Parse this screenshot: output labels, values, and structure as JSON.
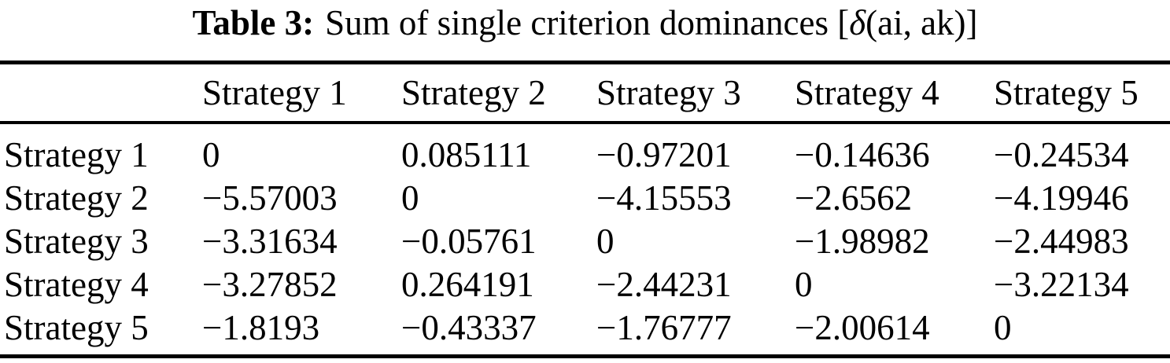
{
  "caption": {
    "label": "Table 3:",
    "body_prefix": "Sum of single criterion dominances [",
    "delta": "δ",
    "body_suffix": "(ai, ak)]"
  },
  "table": {
    "header": [
      "",
      "Strategy 1",
      "Strategy 2",
      "Strategy 3",
      "Strategy 4",
      "Strategy 5"
    ],
    "rows": [
      {
        "label": "Strategy 1",
        "values": [
          "0",
          "0.085111",
          "−0.97201",
          "−0.14636",
          "−0.24534"
        ]
      },
      {
        "label": "Strategy 2",
        "values": [
          "−5.57003",
          "0",
          "−4.15553",
          "−2.6562",
          "−4.19946"
        ]
      },
      {
        "label": "Strategy 3",
        "values": [
          "−3.31634",
          "−0.05761",
          "0",
          "−1.98982",
          "−2.44983"
        ]
      },
      {
        "label": "Strategy 4",
        "values": [
          "−3.27852",
          "0.264191",
          "−2.44231",
          "0",
          "−3.22134"
        ]
      },
      {
        "label": "Strategy 5",
        "values": [
          "−1.8193",
          "−0.43337",
          "−1.76777",
          "−2.00614",
          "0"
        ]
      }
    ]
  }
}
